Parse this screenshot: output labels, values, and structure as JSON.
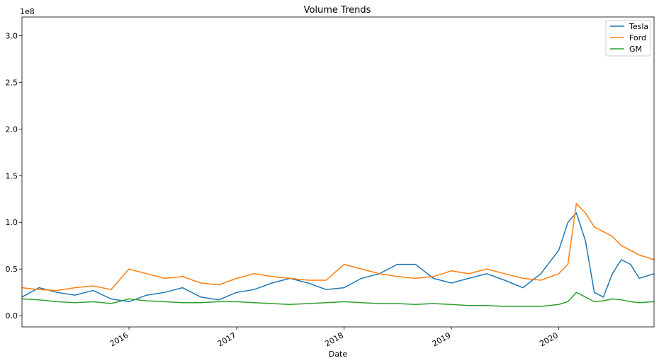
{
  "chart_data": {
    "type": "line",
    "title": "Volume Trends",
    "xlabel": "Date",
    "ylabel": "",
    "y_offset_label": "1e8",
    "xlim": [
      "2015-01-02",
      "2020-11-20"
    ],
    "ylim": [
      -0.12,
      3.2
    ],
    "x_tick_labels": [
      "2016",
      "2017",
      "2018",
      "2019",
      "2020"
    ],
    "x_tick_dates": [
      "2016-01-01",
      "2017-01-01",
      "2018-01-01",
      "2019-01-01",
      "2020-01-01"
    ],
    "y_ticks": [
      0.0,
      0.5,
      1.0,
      1.5,
      2.0,
      2.5,
      3.0
    ],
    "y_tick_labels": [
      "0.0",
      "0.5",
      "1.0",
      "1.5",
      "2.0",
      "2.5",
      "3.0"
    ],
    "legend_position": "top-right",
    "grid": false,
    "series": [
      {
        "name": "Tesla",
        "color": "#1f77b4",
        "x": [
          "2015-01-02",
          "2015-03-01",
          "2015-05-01",
          "2015-07-01",
          "2015-09-01",
          "2015-11-01",
          "2016-01-01",
          "2016-03-01",
          "2016-05-01",
          "2016-07-01",
          "2016-09-01",
          "2016-11-01",
          "2017-01-01",
          "2017-03-01",
          "2017-05-01",
          "2017-07-01",
          "2017-09-01",
          "2017-11-01",
          "2018-01-01",
          "2018-03-01",
          "2018-05-01",
          "2018-07-01",
          "2018-09-01",
          "2018-11-01",
          "2019-01-01",
          "2019-03-01",
          "2019-05-01",
          "2019-07-01",
          "2019-09-01",
          "2019-11-01",
          "2020-01-01",
          "2020-02-01",
          "2020-03-01",
          "2020-04-01",
          "2020-05-01",
          "2020-06-01",
          "2020-07-01",
          "2020-08-01",
          "2020-09-01",
          "2020-10-01",
          "2020-11-20"
        ],
        "y": [
          0.2,
          0.3,
          0.25,
          0.22,
          0.27,
          0.18,
          0.15,
          0.22,
          0.25,
          0.3,
          0.2,
          0.17,
          0.25,
          0.28,
          0.35,
          0.4,
          0.35,
          0.28,
          0.3,
          0.4,
          0.45,
          0.55,
          0.55,
          0.4,
          0.35,
          0.4,
          0.45,
          0.38,
          0.3,
          0.45,
          0.7,
          1.0,
          1.1,
          0.8,
          0.25,
          0.2,
          0.45,
          0.6,
          0.55,
          0.4,
          0.45
        ]
      },
      {
        "name": "Ford",
        "color": "#ff7f0e",
        "x": [
          "2015-01-02",
          "2015-03-01",
          "2015-05-01",
          "2015-07-01",
          "2015-09-01",
          "2015-11-01",
          "2016-01-01",
          "2016-03-01",
          "2016-05-01",
          "2016-07-01",
          "2016-09-01",
          "2016-11-01",
          "2017-01-01",
          "2017-03-01",
          "2017-05-01",
          "2017-07-01",
          "2017-09-01",
          "2017-11-01",
          "2018-01-01",
          "2018-03-01",
          "2018-05-01",
          "2018-07-01",
          "2018-09-01",
          "2018-11-01",
          "2019-01-01",
          "2019-03-01",
          "2019-05-01",
          "2019-07-01",
          "2019-09-01",
          "2019-11-01",
          "2020-01-01",
          "2020-02-01",
          "2020-03-01",
          "2020-04-01",
          "2020-05-01",
          "2020-06-01",
          "2020-07-01",
          "2020-08-01",
          "2020-09-01",
          "2020-10-01",
          "2020-11-20"
        ],
        "y": [
          0.3,
          0.28,
          0.27,
          0.3,
          0.32,
          0.28,
          0.5,
          0.45,
          0.4,
          0.42,
          0.35,
          0.33,
          0.4,
          0.45,
          0.42,
          0.4,
          0.38,
          0.38,
          0.55,
          0.5,
          0.45,
          0.42,
          0.4,
          0.42,
          0.48,
          0.45,
          0.5,
          0.45,
          0.4,
          0.38,
          0.45,
          0.55,
          1.2,
          1.1,
          0.95,
          0.9,
          0.85,
          0.75,
          0.7,
          0.65,
          0.6
        ]
      },
      {
        "name": "GM",
        "color": "#2ca02c",
        "x": [
          "2015-01-02",
          "2015-03-01",
          "2015-05-01",
          "2015-07-01",
          "2015-09-01",
          "2015-11-01",
          "2016-01-01",
          "2016-03-01",
          "2016-05-01",
          "2016-07-01",
          "2016-09-01",
          "2016-11-01",
          "2017-01-01",
          "2017-03-01",
          "2017-05-01",
          "2017-07-01",
          "2017-09-01",
          "2017-11-01",
          "2018-01-01",
          "2018-03-01",
          "2018-05-01",
          "2018-07-01",
          "2018-09-01",
          "2018-11-01",
          "2019-01-01",
          "2019-03-01",
          "2019-05-01",
          "2019-07-01",
          "2019-09-01",
          "2019-11-01",
          "2020-01-01",
          "2020-02-01",
          "2020-03-01",
          "2020-04-01",
          "2020-05-01",
          "2020-06-01",
          "2020-07-01",
          "2020-08-01",
          "2020-09-01",
          "2020-10-01",
          "2020-11-20"
        ],
        "y": [
          0.18,
          0.17,
          0.15,
          0.14,
          0.15,
          0.13,
          0.18,
          0.16,
          0.15,
          0.14,
          0.14,
          0.15,
          0.15,
          0.14,
          0.13,
          0.12,
          0.13,
          0.14,
          0.15,
          0.14,
          0.13,
          0.13,
          0.12,
          0.13,
          0.12,
          0.11,
          0.11,
          0.1,
          0.1,
          0.1,
          0.12,
          0.15,
          0.25,
          0.2,
          0.15,
          0.16,
          0.18,
          0.17,
          0.15,
          0.14,
          0.15
        ]
      }
    ]
  }
}
